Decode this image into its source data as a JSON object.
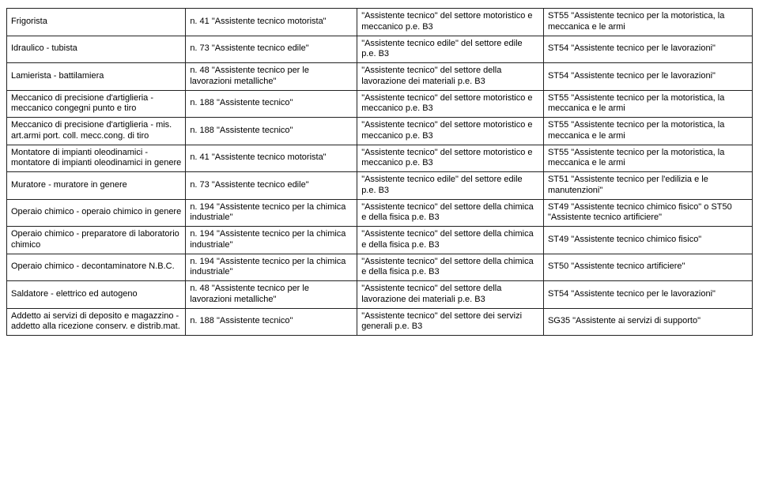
{
  "table": {
    "columns": [
      "col1",
      "col2",
      "col3",
      "col4"
    ],
    "rows": [
      [
        "Frigorista",
        "n. 41 \"Assistente tecnico motorista\"",
        "\"Assistente tecnico\" del settore motoristico e meccanico p.e. B3",
        "ST55 \"Assistente tecnico per la motoristica, la meccanica e le armi"
      ],
      [
        "Idraulico - tubista",
        "n. 73 \"Assistente tecnico edile\"",
        "\"Assistente tecnico edile\" del settore edile p.e. B3",
        "ST54 \"Assistente tecnico per le lavorazioni\""
      ],
      [
        "Lamierista - battilamiera",
        "n. 48 \"Assistente tecnico per le lavorazioni metalliche\"",
        "\"Assistente tecnico\" del settore della lavorazione dei materiali p.e. B3",
        "ST54 \"Assistente tecnico per le lavorazioni\""
      ],
      [
        "Meccanico di precisione d'artiglieria - meccanico congegni punto e tiro",
        "n. 188 \"Assistente tecnico\"",
        "\"Assistente tecnico\" del settore motoristico e meccanico p.e. B3",
        "ST55 \"Assistente tecnico per la motoristica, la meccanica e le armi"
      ],
      [
        "Meccanico di precisione d'artiglieria - mis. art.armi port. coll. mecc.cong. di tiro",
        "n. 188 \"Assistente tecnico\"",
        "\"Assistente tecnico\" del settore motoristico e meccanico p.e. B3",
        "ST55 \"Assistente tecnico per la motoristica, la meccanica e le armi"
      ],
      [
        "Montatore di impianti oleodinamici - montatore di impianti oleodinamici in genere",
        "n. 41 \"Assistente tecnico motorista\"",
        "\"Assistente tecnico\" del settore motoristico e meccanico p.e. B3",
        "ST55 \"Assistente tecnico per la motoristica, la meccanica e le armi"
      ],
      [
        "Muratore - muratore in genere",
        "n. 73 \"Assistente tecnico edile\"",
        "\"Assistente tecnico edile\" del settore edile p.e. B3",
        "ST51 \"Assistente tecnico per l'edilizia e le manutenzioni\""
      ],
      [
        "Operaio chimico - operaio chimico in genere",
        "n. 194 \"Assistente tecnico per la chimica industriale\"",
        "\"Assistente tecnico\" del settore della chimica e della fisica p.e. B3",
        "ST49 \"Assistente tecnico chimico fisico\" o ST50 \"Assistente tecnico artificiere\""
      ],
      [
        "Operaio chimico - preparatore di laboratorio chimico",
        "n. 194 \"Assistente tecnico per la chimica industriale\"",
        "\"Assistente tecnico\" del settore della chimica e della fisica p.e. B3",
        "ST49 \"Assistente tecnico chimico fisico\""
      ],
      [
        "Operaio chimico - decontaminatore N.B.C.",
        "n. 194 \"Assistente tecnico per la chimica industriale\"",
        "\"Assistente tecnico\" del settore della chimica e della fisica p.e. B3",
        "ST50 \"Assistente tecnico artificiere\""
      ],
      [
        "Saldatore - elettrico ed autogeno",
        "n. 48 \"Assistente tecnico per le lavorazioni metalliche\"",
        "\"Assistente tecnico\" del settore della lavorazione dei materiali p.e. B3",
        "ST54 \"Assistente tecnico per le lavorazioni\""
      ],
      [
        "Addetto ai servizi di deposito e magazzino - addetto alla ricezione conserv. e distrib.mat.",
        "n. 188 \"Assistente tecnico\"",
        "\"Assistente tecnico\" del settore dei servizi generali p.e. B3",
        "SG35 \"Assistente ai servizi di supporto\""
      ]
    ],
    "border_color": "#222222",
    "font_size": 11,
    "background_color": "#ffffff",
    "text_color": "#000000"
  }
}
